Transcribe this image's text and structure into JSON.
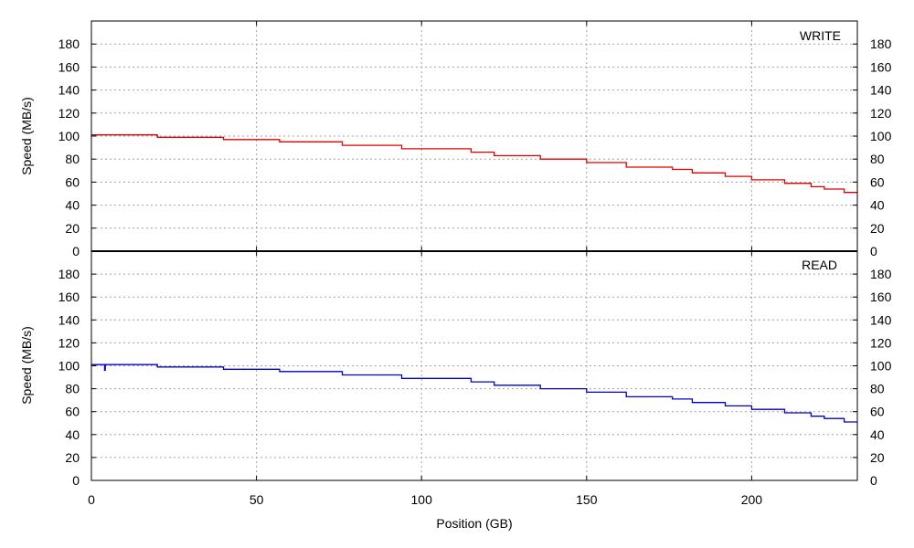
{
  "chart_data": {
    "type": "line",
    "layout": "two vertically stacked panels sharing the x-axis",
    "xlabel": "Position (GB)",
    "ylabel": "Speed (MB/s)",
    "xlim": [
      0,
      232
    ],
    "xticks": [
      0,
      50,
      100,
      150,
      200
    ],
    "ylim": [
      0,
      200
    ],
    "yticks": [
      0,
      20,
      40,
      60,
      80,
      100,
      120,
      140,
      160,
      180
    ],
    "grid": true,
    "right_axis_mirrors_left": true,
    "panels": [
      {
        "label": "WRITE",
        "color": "#e00000",
        "x": [
          0,
          20,
          20,
          40,
          40,
          57,
          57,
          76,
          76,
          94,
          94,
          115,
          115,
          122,
          122,
          136,
          136,
          150,
          150,
          162,
          162,
          176,
          176,
          182,
          182,
          192,
          192,
          200,
          200,
          210,
          210,
          218,
          218,
          222,
          222,
          228,
          228,
          232
        ],
        "values": [
          101,
          101,
          99,
          99,
          97,
          97,
          95,
          95,
          92,
          92,
          89,
          89,
          86,
          86,
          83,
          83,
          80,
          80,
          77,
          77,
          73,
          73,
          71,
          71,
          68,
          68,
          65,
          65,
          62,
          62,
          59,
          59,
          56,
          56,
          54,
          54,
          51,
          51
        ]
      },
      {
        "label": "READ",
        "color": "#0000cc",
        "x": [
          0,
          4,
          4,
          4.2,
          4.2,
          20,
          20,
          40,
          40,
          57,
          57,
          76,
          76,
          94,
          94,
          115,
          115,
          122,
          122,
          136,
          136,
          150,
          150,
          162,
          162,
          176,
          176,
          182,
          182,
          192,
          192,
          200,
          200,
          210,
          210,
          218,
          218,
          222,
          222,
          228,
          228,
          232
        ],
        "values": [
          101,
          101,
          96,
          96,
          101,
          101,
          99,
          99,
          97,
          97,
          95,
          95,
          92,
          92,
          89,
          89,
          86,
          86,
          83,
          83,
          80,
          80,
          77,
          77,
          73,
          73,
          71,
          71,
          68,
          68,
          65,
          65,
          62,
          62,
          59,
          59,
          56,
          56,
          54,
          54,
          51,
          51
        ]
      }
    ]
  }
}
